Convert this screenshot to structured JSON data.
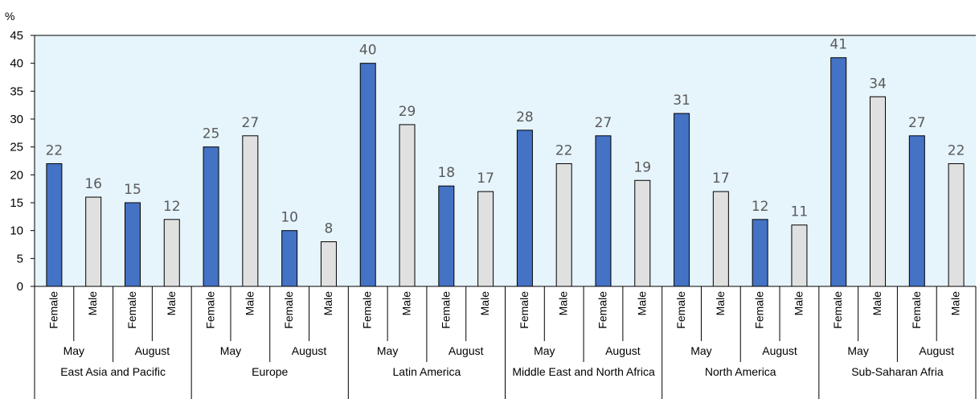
{
  "chart_data": {
    "type": "bar",
    "ylabel": "%",
    "ylim": [
      0,
      45
    ],
    "yticks": [
      0,
      5,
      10,
      15,
      20,
      25,
      30,
      35,
      40,
      45
    ],
    "grid": false,
    "plot_background": "#E6F4FB",
    "colors": {
      "Female": "#4472C4",
      "Male": "#E0E0E0",
      "bar_outline": "#000000"
    },
    "regions": [
      {
        "name": "East Asia and Pacific",
        "months": [
          {
            "name": "May",
            "bars": [
              {
                "label": "Female",
                "value": 22
              },
              {
                "label": "Male",
                "value": 16
              }
            ]
          },
          {
            "name": "August",
            "bars": [
              {
                "label": "Female",
                "value": 15
              },
              {
                "label": "Male",
                "value": 12
              }
            ]
          }
        ]
      },
      {
        "name": "Europe",
        "months": [
          {
            "name": "May",
            "bars": [
              {
                "label": "Female",
                "value": 25
              },
              {
                "label": "Male",
                "value": 27
              }
            ]
          },
          {
            "name": "August",
            "bars": [
              {
                "label": "Female",
                "value": 10
              },
              {
                "label": "Male",
                "value": 8
              }
            ]
          }
        ]
      },
      {
        "name": "Latin America",
        "months": [
          {
            "name": "May",
            "bars": [
              {
                "label": "Female",
                "value": 40
              },
              {
                "label": "Male",
                "value": 29
              }
            ]
          },
          {
            "name": "August",
            "bars": [
              {
                "label": "Female",
                "value": 18
              },
              {
                "label": "Male",
                "value": 17
              }
            ]
          }
        ]
      },
      {
        "name": "Middle East and North Africa",
        "months": [
          {
            "name": "May",
            "bars": [
              {
                "label": "Female",
                "value": 28
              },
              {
                "label": "Male",
                "value": 22
              }
            ]
          },
          {
            "name": "August",
            "bars": [
              {
                "label": "Female",
                "value": 27
              },
              {
                "label": "Male",
                "value": 19
              }
            ]
          }
        ]
      },
      {
        "name": "North America",
        "months": [
          {
            "name": "May",
            "bars": [
              {
                "label": "Female",
                "value": 31
              },
              {
                "label": "Male",
                "value": 17
              }
            ]
          },
          {
            "name": "August",
            "bars": [
              {
                "label": "Female",
                "value": 12
              },
              {
                "label": "Male",
                "value": 11
              }
            ]
          }
        ]
      },
      {
        "name": "Sub-Saharan Afria",
        "months": [
          {
            "name": "May",
            "bars": [
              {
                "label": "Female",
                "value": 41
              },
              {
                "label": "Male",
                "value": 34
              }
            ]
          },
          {
            "name": "August",
            "bars": [
              {
                "label": "Female",
                "value": 27
              },
              {
                "label": "Male",
                "value": 22
              }
            ]
          }
        ]
      }
    ]
  }
}
